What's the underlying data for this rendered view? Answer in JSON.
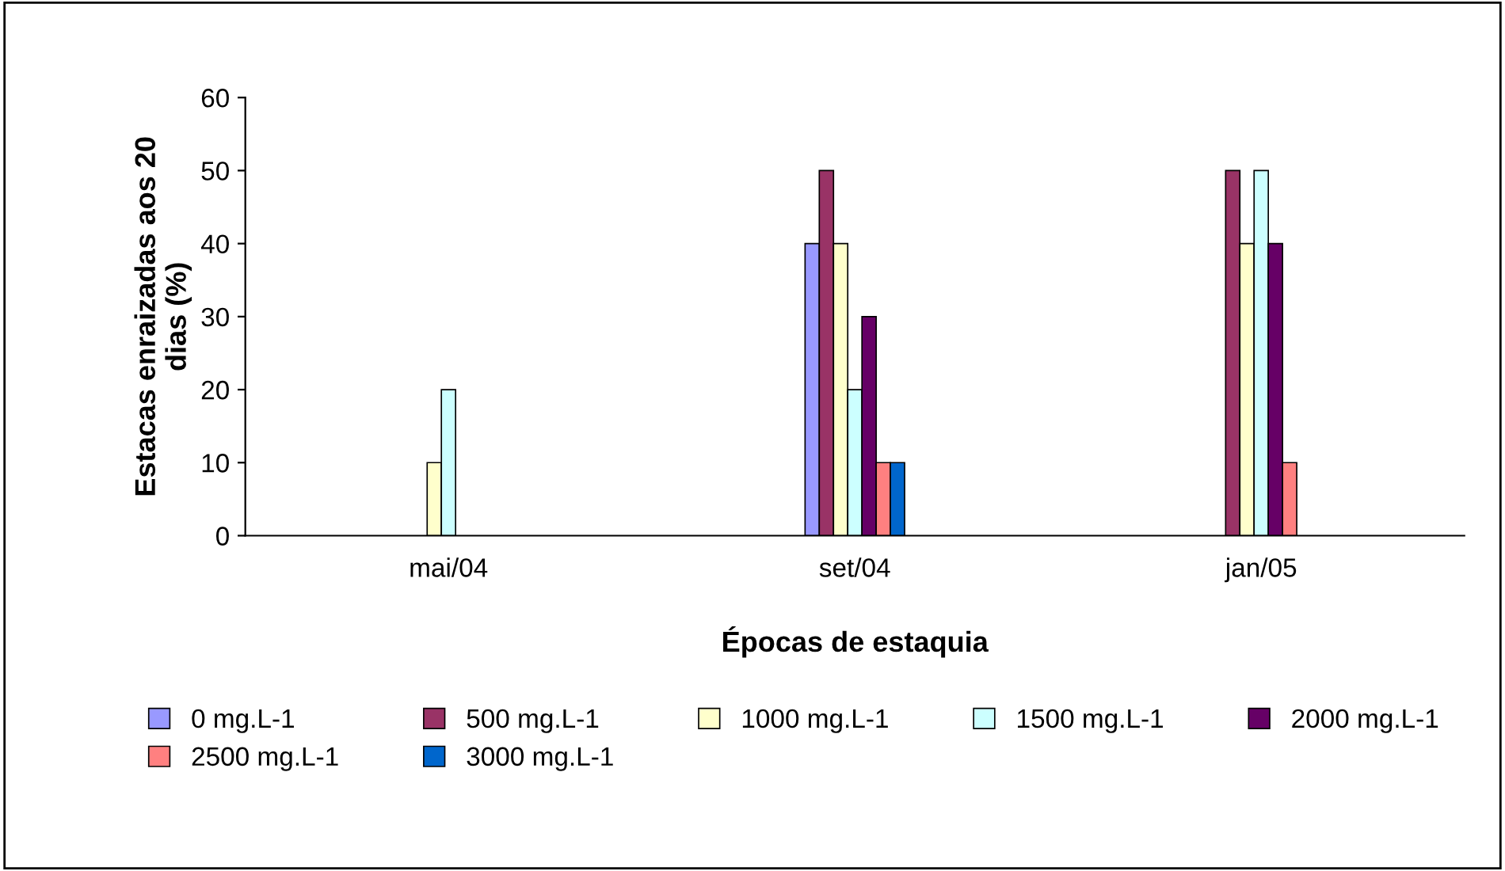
{
  "chart_data": {
    "type": "bar",
    "xlabel": "Épocas de estaquia",
    "ylabel": "Estacas enraizadas aos 20\ndias (%)",
    "categories": [
      "mai/04",
      "set/04",
      "jan/05"
    ],
    "series": [
      {
        "name": "0 mg.L-1",
        "color": "#9999ff",
        "values": [
          null,
          40,
          null
        ]
      },
      {
        "name": "500 mg.L-1",
        "color": "#993366",
        "values": [
          null,
          50,
          50
        ]
      },
      {
        "name": "1000 mg.L-1",
        "color": "#ffffcc",
        "values": [
          10,
          40,
          40
        ]
      },
      {
        "name": "1500 mg.L-1",
        "color": "#ccffff",
        "values": [
          20,
          20,
          50
        ]
      },
      {
        "name": "2000 mg.L-1",
        "color": "#660066",
        "values": [
          null,
          30,
          40
        ]
      },
      {
        "name": "2500 mg.L-1",
        "color": "#ff8080",
        "values": [
          null,
          10,
          10
        ]
      },
      {
        "name": "3000 mg.L-1",
        "color": "#0066cc",
        "values": [
          null,
          10,
          null
        ]
      }
    ],
    "ylim": [
      0,
      60
    ],
    "yticks": [
      0,
      10,
      20,
      30,
      40,
      50,
      60
    ],
    "grid": false,
    "legend": "bottom"
  }
}
